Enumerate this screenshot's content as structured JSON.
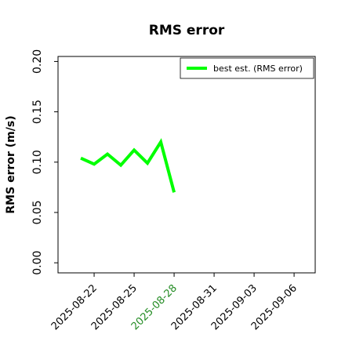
{
  "chart_data": {
    "type": "line",
    "title": "RMS error",
    "ylabel": "RMS error (m/s)",
    "x": [
      "2025-08-21",
      "2025-08-22",
      "2025-08-23",
      "2025-08-24",
      "2025-08-25",
      "2025-08-26",
      "2025-08-27",
      "2025-08-28"
    ],
    "series": [
      {
        "name": "best est. (RMS error)",
        "color": "#00ff00",
        "values": [
          0.104,
          0.098,
          0.108,
          0.097,
          0.112,
          0.099,
          0.12,
          0.07
        ]
      }
    ],
    "xlim": [
      "2025-08-19T07:00",
      "2025-09-07T14:00"
    ],
    "xticks": [
      "2025-08-22",
      "2025-08-25",
      {
        "value": "2025-08-28",
        "label": "2025-08-28",
        "color": "#228b22"
      },
      "2025-08-31",
      "2025-09-03",
      "2025-09-06"
    ],
    "ylim": [
      -0.01,
      0.205
    ],
    "yticks": [
      {
        "value": 0,
        "label": "0.00"
      },
      {
        "value": 0.05,
        "label": "0.05"
      },
      {
        "value": 0.1,
        "label": "0.10"
      },
      {
        "value": 0.15,
        "label": "0.15"
      },
      {
        "value": 0.2,
        "label": "0.20"
      }
    ],
    "legend": "upper right",
    "grid": false
  }
}
